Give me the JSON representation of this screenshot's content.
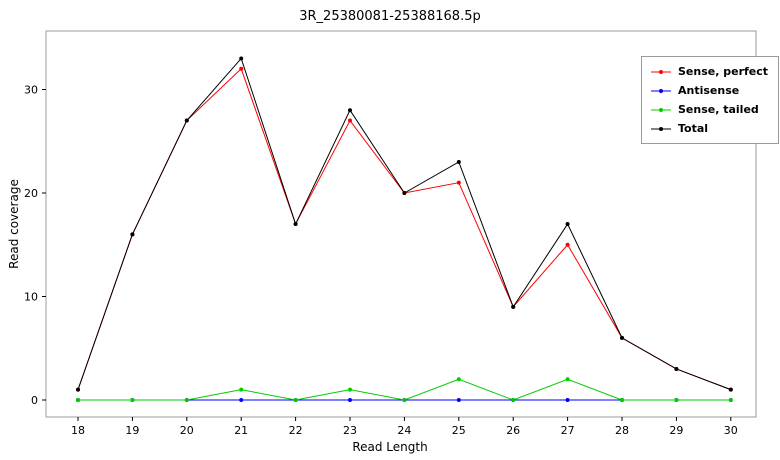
{
  "chart_data": {
    "type": "line",
    "title": "3R_25380081-25388168.5p",
    "xlabel": "Read Length",
    "ylabel": "Read coverage",
    "x": [
      18,
      19,
      20,
      21,
      22,
      23,
      24,
      25,
      26,
      27,
      28,
      29,
      30
    ],
    "y_ticks": [
      0,
      10,
      20,
      30
    ],
    "ylim": [
      0,
      33
    ],
    "grid": false,
    "legend_position": "top-right",
    "panel_border_color": "#9b9b9b",
    "series": [
      {
        "name": "Sense, perfect",
        "color": "#ff0000",
        "values": [
          1,
          16,
          27,
          32,
          17,
          27,
          20,
          21,
          9,
          15,
          6,
          3,
          1
        ]
      },
      {
        "name": "Antisense",
        "color": "#0000ff",
        "values": [
          0,
          0,
          0,
          0,
          0,
          0,
          0,
          0,
          0,
          0,
          0,
          0,
          0
        ]
      },
      {
        "name": "Sense, tailed",
        "color": "#00cc00",
        "values": [
          0,
          0,
          0,
          1,
          0,
          1,
          0,
          2,
          0,
          2,
          0,
          0,
          0
        ]
      },
      {
        "name": "Total",
        "color": "#000000",
        "values": [
          1,
          16,
          27,
          33,
          17,
          28,
          20,
          23,
          9,
          17,
          6,
          3,
          1
        ]
      }
    ]
  }
}
